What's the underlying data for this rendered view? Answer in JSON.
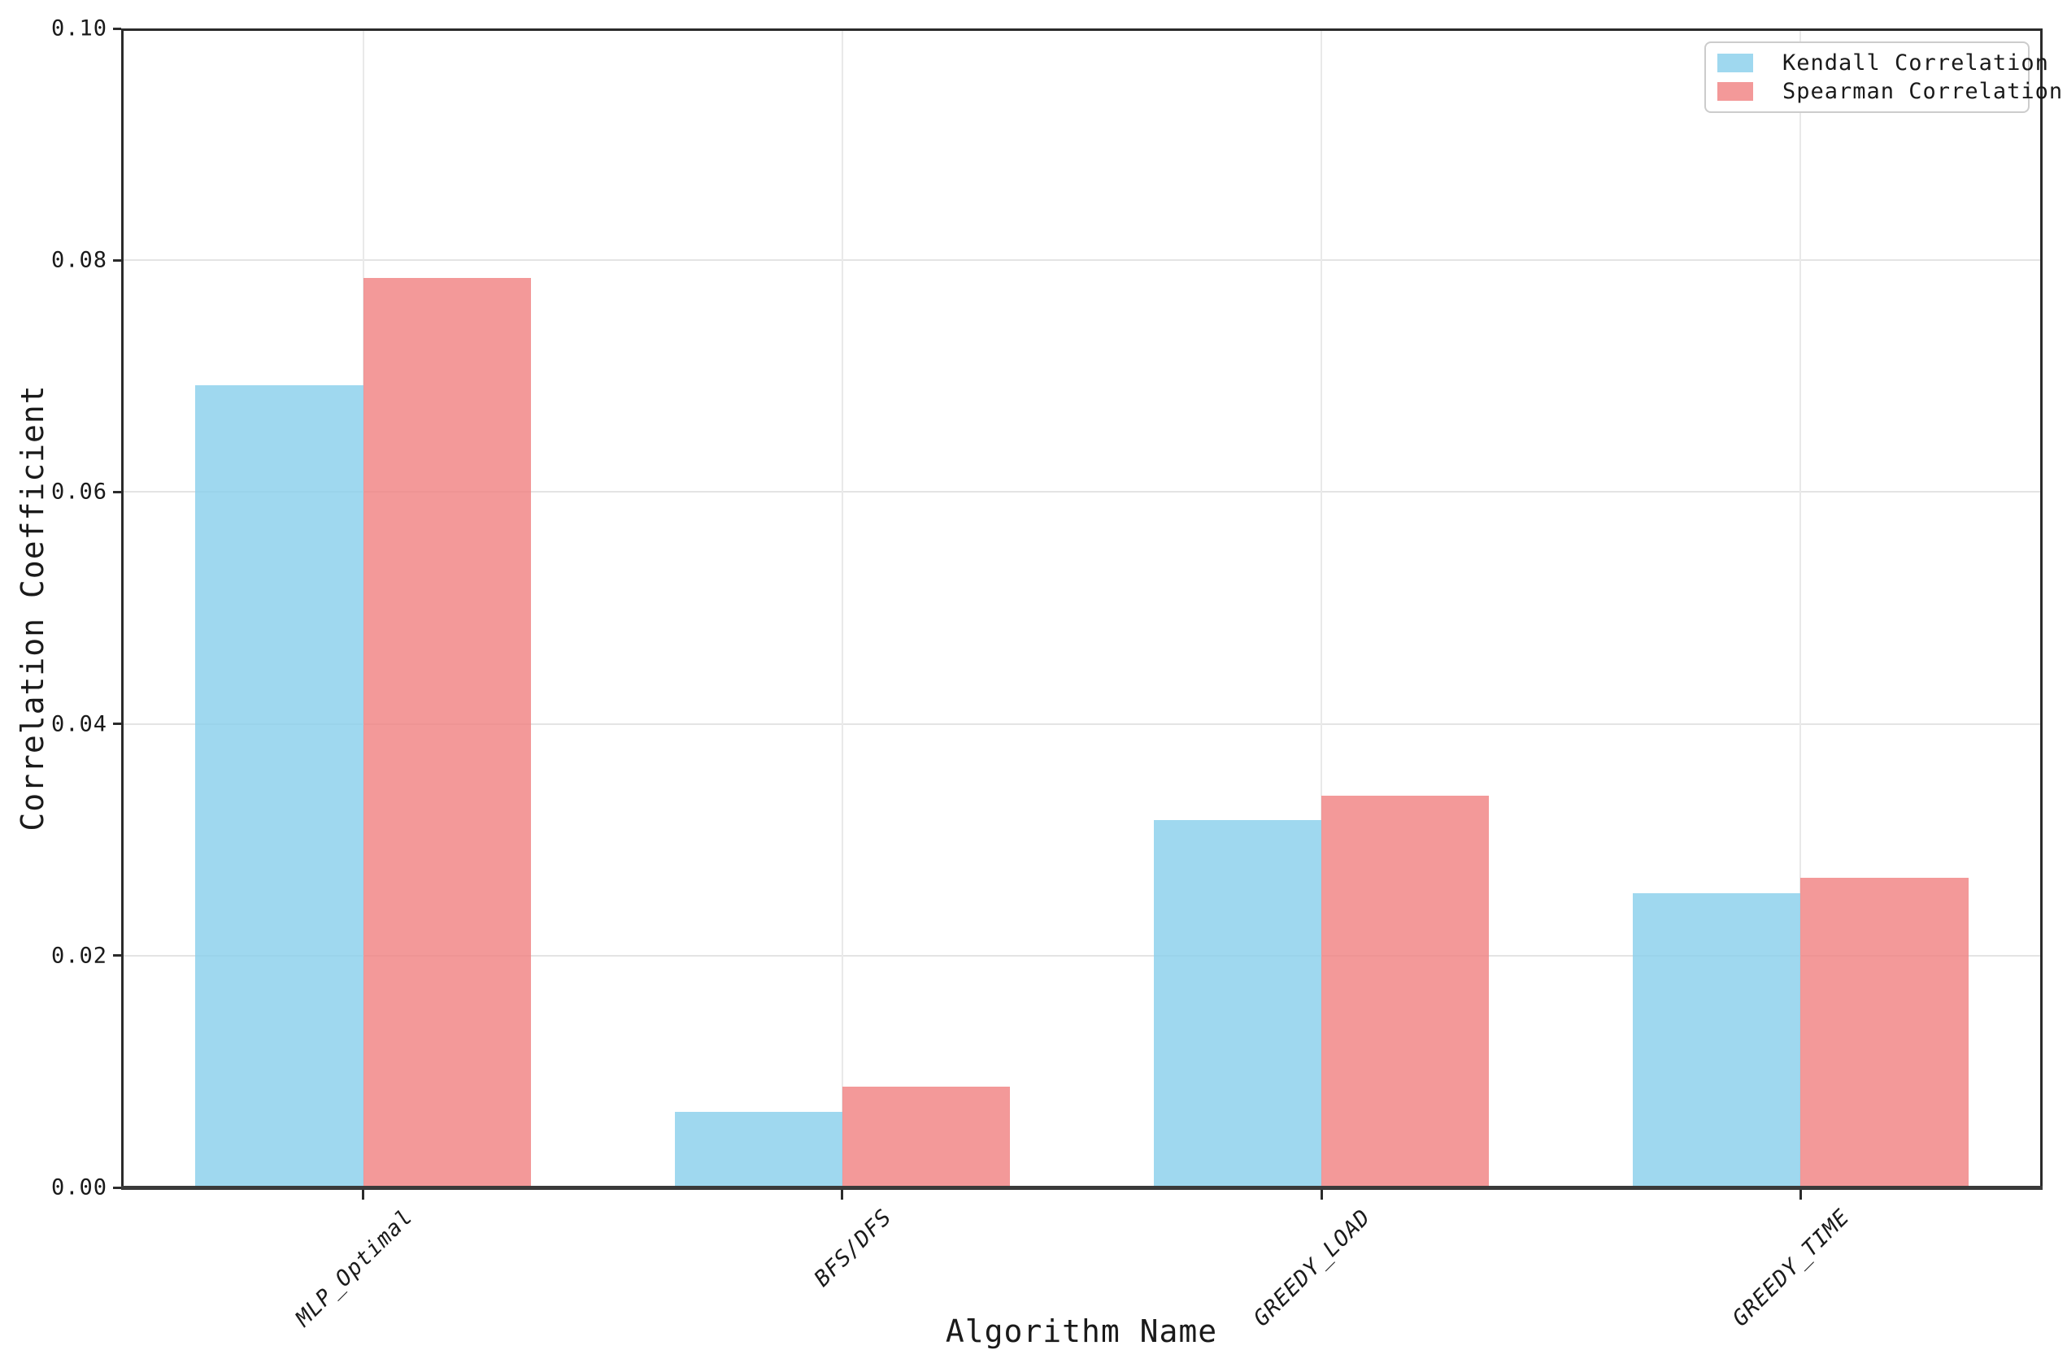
{
  "chart_data": {
    "type": "bar",
    "title": "",
    "xlabel": "Algorithm Name",
    "ylabel": "Correlation Coefficient",
    "categories": [
      "MLP_Optimal",
      "BFS/DFS",
      "GREEDY_LOAD",
      "GREEDY_TIME"
    ],
    "series": [
      {
        "name": "Kendall Correlation",
        "color": "#87CEEB",
        "values": [
          0.0692,
          0.0065,
          0.0317,
          0.0254
        ]
      },
      {
        "name": "Spearman Correlation",
        "color": "#F08080",
        "values": [
          0.0785,
          0.0087,
          0.0338,
          0.0267
        ]
      }
    ],
    "ylim": [
      0.0,
      0.1
    ],
    "yticks": [
      "0.00",
      "0.02",
      "0.04",
      "0.06",
      "0.08",
      "0.10"
    ],
    "bar_alpha": 0.8,
    "bar_width_fraction": 0.35,
    "grid": true,
    "legend_position": "upper right",
    "grid_color": "#e4e4e4",
    "spine_color": "#2b2b2b",
    "text_color": "#1a1a1a",
    "background_color": "#ffffff"
  }
}
